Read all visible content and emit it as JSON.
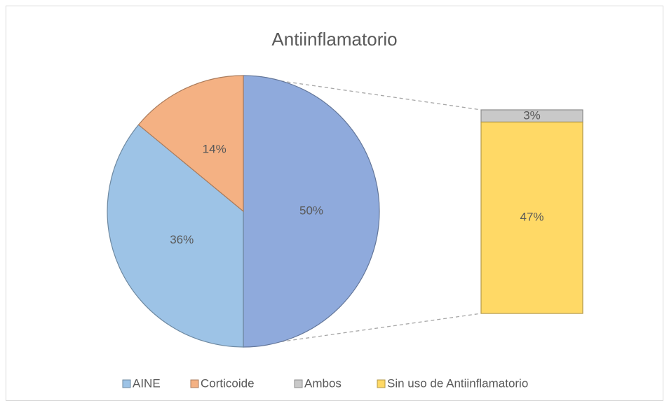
{
  "chart_data": {
    "type": "pie_of_bar",
    "title": "Antiinflamatorio",
    "categories": [
      "AINE",
      "Corticoide",
      "Ambos",
      "Sin uso de Antiinflamatorio"
    ],
    "values": [
      36,
      14,
      3,
      47
    ],
    "value_labels": [
      "36%",
      "14%",
      "3%",
      "47%"
    ],
    "colors": [
      "#9dc3e6",
      "#f4b183",
      "#c9c9c9",
      "#ffd966"
    ],
    "second_plot_values": 2,
    "other_value": 50,
    "other_value_label": "50%",
    "other_color": "#8faadc",
    "legend": "bottom"
  }
}
